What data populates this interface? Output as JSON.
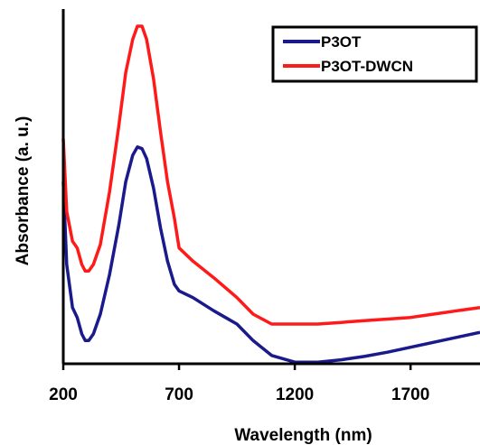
{
  "chart_data": {
    "type": "line",
    "title": "",
    "xlabel": "Wavelength (nm)",
    "ylabel": "Absorbance (a. u.)",
    "xlim": [
      200,
      2000
    ],
    "ylim": [
      0,
      1.05
    ],
    "xticks": [
      "200",
      "700",
      "1200",
      "1700"
    ],
    "yticks_shown": false,
    "grid": false,
    "legend_position": "top-right",
    "series": [
      {
        "name": "P3OT",
        "color": "#1a1a8c",
        "points": [
          [
            200,
            0.55
          ],
          [
            215,
            0.3
          ],
          [
            240,
            0.17
          ],
          [
            260,
            0.14
          ],
          [
            280,
            0.09
          ],
          [
            295,
            0.07
          ],
          [
            310,
            0.07
          ],
          [
            330,
            0.09
          ],
          [
            360,
            0.15
          ],
          [
            400,
            0.27
          ],
          [
            440,
            0.42
          ],
          [
            470,
            0.55
          ],
          [
            500,
            0.63
          ],
          [
            520,
            0.655
          ],
          [
            540,
            0.65
          ],
          [
            560,
            0.62
          ],
          [
            590,
            0.53
          ],
          [
            620,
            0.41
          ],
          [
            650,
            0.31
          ],
          [
            680,
            0.24
          ],
          [
            700,
            0.22
          ],
          [
            760,
            0.2
          ],
          [
            850,
            0.16
          ],
          [
            950,
            0.12
          ],
          [
            1020,
            0.07
          ],
          [
            1100,
            0.025
          ],
          [
            1200,
            0.005
          ],
          [
            1300,
            0.005
          ],
          [
            1400,
            0.012
          ],
          [
            1500,
            0.022
          ],
          [
            1600,
            0.035
          ],
          [
            1700,
            0.05
          ],
          [
            1800,
            0.065
          ],
          [
            1900,
            0.08
          ],
          [
            2000,
            0.095
          ]
        ]
      },
      {
        "name": "P3OT-DWCN",
        "color": "#ff1a1a",
        "points": [
          [
            200,
            0.68
          ],
          [
            215,
            0.46
          ],
          [
            240,
            0.37
          ],
          [
            260,
            0.35
          ],
          [
            280,
            0.3
          ],
          [
            295,
            0.28
          ],
          [
            310,
            0.28
          ],
          [
            330,
            0.3
          ],
          [
            360,
            0.36
          ],
          [
            400,
            0.52
          ],
          [
            440,
            0.72
          ],
          [
            470,
            0.88
          ],
          [
            500,
            0.98
          ],
          [
            520,
            1.02
          ],
          [
            540,
            1.02
          ],
          [
            560,
            0.98
          ],
          [
            590,
            0.86
          ],
          [
            620,
            0.7
          ],
          [
            650,
            0.55
          ],
          [
            680,
            0.44
          ],
          [
            700,
            0.35
          ],
          [
            760,
            0.31
          ],
          [
            850,
            0.26
          ],
          [
            950,
            0.2
          ],
          [
            1020,
            0.15
          ],
          [
            1100,
            0.12
          ],
          [
            1200,
            0.12
          ],
          [
            1300,
            0.12
          ],
          [
            1400,
            0.125
          ],
          [
            1500,
            0.13
          ],
          [
            1600,
            0.135
          ],
          [
            1700,
            0.14
          ],
          [
            1800,
            0.15
          ],
          [
            1900,
            0.16
          ],
          [
            2000,
            0.17
          ]
        ]
      }
    ]
  }
}
